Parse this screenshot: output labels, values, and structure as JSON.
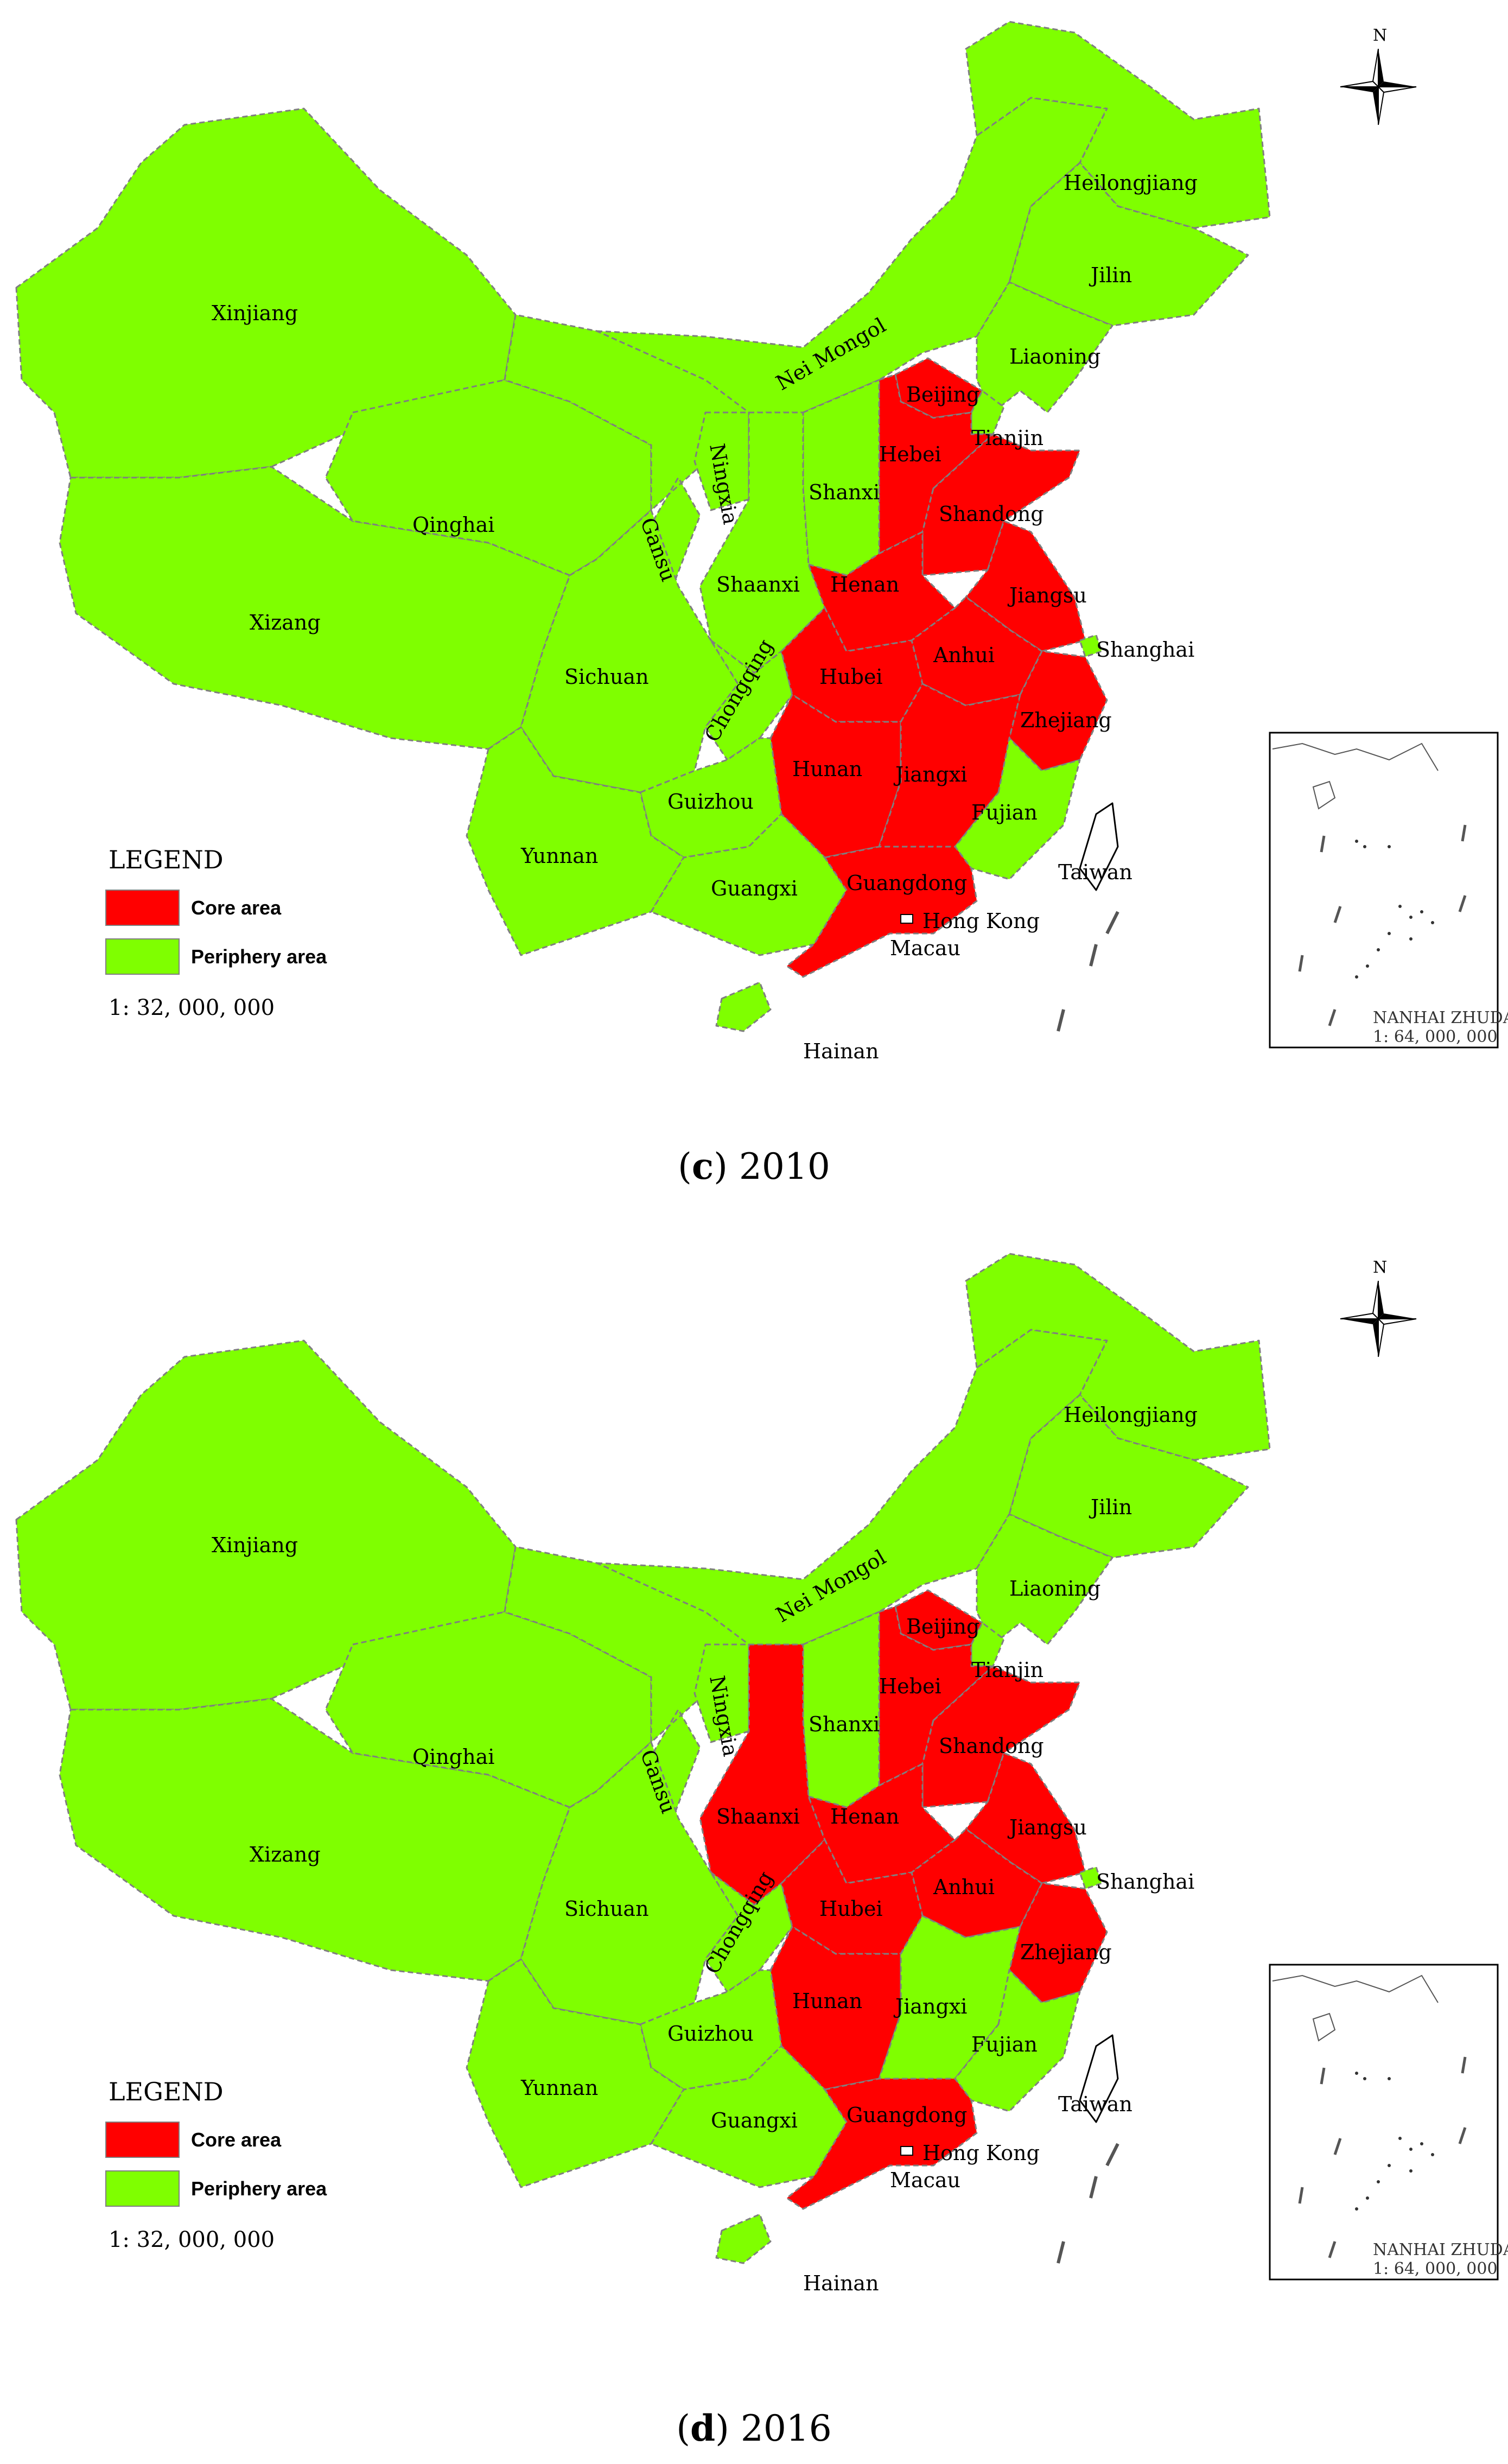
{
  "colors": {
    "core": "#ff0000",
    "periphery": "#7fff00",
    "border": "#7f7f7f"
  },
  "legend": {
    "title": "LEGEND",
    "core_label": "Core area",
    "periphery_label": "Periphery area",
    "scale": "1: 32, 000, 000"
  },
  "compass": {
    "north_label": "N"
  },
  "inset": {
    "title": "NANHAI ZHUDAO",
    "scale": "1: 64, 000, 000"
  },
  "provinces": {
    "xinjiang": "Xinjiang",
    "xizang": "Xizang",
    "qinghai": "Qinghai",
    "gansu": "Gansu",
    "ningxia": "Ningxia",
    "nei_mongol": "Nei Mongol",
    "heilongjiang": "Heilongjiang",
    "jilin": "Jilin",
    "liaoning": "Liaoning",
    "beijing": "Beijing",
    "tianjin": "Tianjin",
    "hebei": "Hebei",
    "shanxi": "Shanxi",
    "shandong": "Shandong",
    "shaanxi": "Shaanxi",
    "henan": "Henan",
    "jiangsu": "Jiangsu",
    "anhui": "Anhui",
    "shanghai": "Shanghai",
    "sichuan": "Sichuan",
    "chongqing": "Chongqing",
    "hubei": "Hubei",
    "zhejiang": "Zhejiang",
    "hunan": "Hunan",
    "jiangxi": "Jiangxi",
    "guizhou": "Guizhou",
    "fujian": "Fujian",
    "yunnan": "Yunnan",
    "guangxi": "Guangxi",
    "guangdong": "Guangdong",
    "taiwan": "Taiwan",
    "hong_kong": "Hong Kong",
    "macau": "Macau",
    "hainan": "Hainan"
  },
  "maps": [
    {
      "caption_letter": "c",
      "caption_year": "2010",
      "core_provinces": [
        "beijing",
        "hebei",
        "shandong",
        "henan",
        "jiangsu",
        "anhui",
        "hubei",
        "zhejiang",
        "hunan",
        "jiangxi",
        "guangdong"
      ]
    },
    {
      "caption_letter": "d",
      "caption_year": "2016",
      "core_provinces": [
        "beijing",
        "hebei",
        "shandong",
        "shaanxi",
        "henan",
        "jiangsu",
        "anhui",
        "hubei",
        "zhejiang",
        "hunan",
        "guangdong"
      ]
    }
  ]
}
